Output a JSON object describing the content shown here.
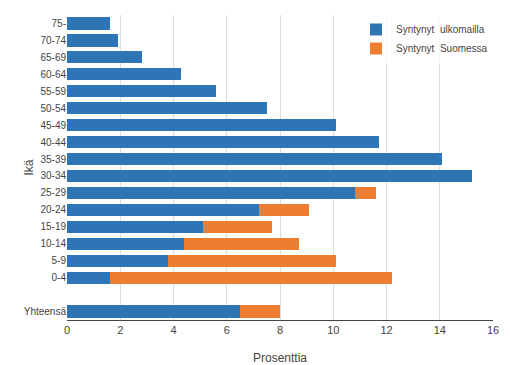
{
  "chart_data": {
    "type": "bar",
    "orientation": "horizontal",
    "stacked": true,
    "categories": [
      "Yhteensä",
      null,
      "0-4",
      "5-9",
      "10-14",
      "15-19",
      "20-24",
      "25-29",
      "30-34",
      "35-39",
      "40-44",
      "45-49",
      "50-54",
      "55-59",
      "60-64",
      "65-69",
      "70-74",
      "75-"
    ],
    "series": [
      {
        "name": "Syntynyt  ulkomailla",
        "color": "#2E75B6",
        "values": [
          6.5,
          0,
          1.6,
          3.8,
          4.4,
          5.1,
          7.2,
          10.8,
          15.2,
          14.1,
          11.7,
          10.1,
          7.5,
          5.6,
          4.3,
          2.8,
          1.9,
          1.6
        ]
      },
      {
        "name": "Syntynyt  Suomessa",
        "color": "#ED7D31",
        "values": [
          1.5,
          0,
          10.6,
          6.3,
          4.3,
          2.6,
          1.9,
          0.8,
          0,
          0,
          0,
          0,
          0,
          0,
          0,
          0,
          0,
          0
        ]
      }
    ],
    "xlabel": "Prosenttia",
    "ylabel": "Ikä",
    "xlim": [
      0,
      16
    ],
    "xticks": [
      0,
      2,
      4,
      6,
      8,
      10,
      12,
      14,
      16
    ],
    "grid": true,
    "legend": "upper right"
  }
}
